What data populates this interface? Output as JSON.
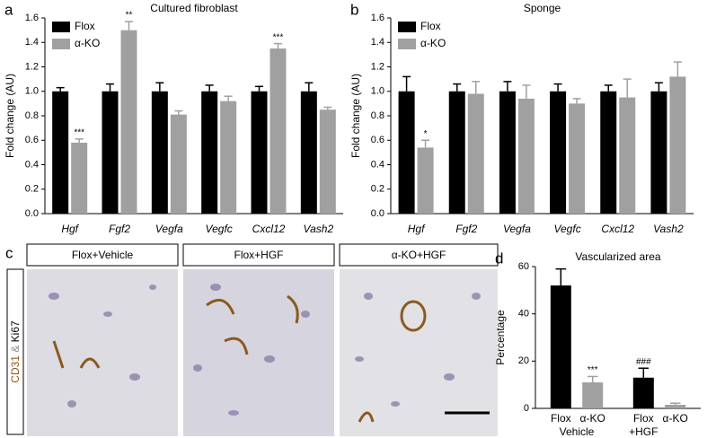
{
  "chart_data": [
    {
      "type": "bar",
      "panel": "a",
      "title": "Cultured fibroblast",
      "ylabel": "Fold change (AU)",
      "categories": [
        "Hgf",
        "Fgf2",
        "Vegfa",
        "Vegfc",
        "Cxcl12",
        "Vash2"
      ],
      "series": [
        {
          "name": "Flox",
          "color": "#000000",
          "values": [
            1,
            1,
            1,
            1,
            1,
            1
          ],
          "errors": [
            0.03,
            0.06,
            0.07,
            0.05,
            0.04,
            0.07
          ],
          "significance": [
            null,
            null,
            null,
            null,
            null,
            null
          ]
        },
        {
          "name": "α-KO",
          "color": "#a0a0a0",
          "values": [
            0.58,
            1.5,
            0.81,
            0.92,
            1.35,
            0.85
          ],
          "errors": [
            0.03,
            0.07,
            0.03,
            0.04,
            0.04,
            0.02
          ],
          "significance": [
            "***",
            "**",
            null,
            null,
            "***",
            null
          ]
        }
      ],
      "ylim": [
        0,
        1.6
      ],
      "yticks": [
        {
          "value": 0,
          "label": "0.0"
        },
        0.2,
        0.4,
        0.6,
        0.8,
        {
          "value": 1,
          "label": "1.0"
        },
        1.2,
        1.4,
        1.6
      ],
      "legend": "top-left"
    },
    {
      "type": "bar",
      "panel": "b",
      "title": "Sponge",
      "ylabel": "Fold change (AU)",
      "categories": [
        "Hgf",
        "Fgf2",
        "Vegfa",
        "Vegfc",
        "Cxcl12",
        "Vash2"
      ],
      "series": [
        {
          "name": "Flox",
          "color": "#000000",
          "values": [
            1,
            1,
            1,
            1,
            1,
            1
          ],
          "errors": [
            0.12,
            0.06,
            0.08,
            0.06,
            0.05,
            0.07
          ],
          "significance": [
            null,
            null,
            null,
            null,
            null,
            null
          ]
        },
        {
          "name": "α-KO",
          "color": "#a0a0a0",
          "values": [
            0.54,
            0.98,
            0.94,
            0.9,
            0.95,
            1.12
          ],
          "errors": [
            0.06,
            0.1,
            0.11,
            0.04,
            0.15,
            0.12
          ],
          "significance": [
            "*",
            null,
            null,
            null,
            null,
            null
          ]
        }
      ],
      "ylim": [
        0,
        1.6
      ],
      "yticks": [
        {
          "value": 0,
          "label": "0.0"
        },
        0.2,
        0.4,
        0.6,
        0.8,
        {
          "value": 1,
          "label": "1.0"
        },
        1.2,
        1.4,
        1.6
      ],
      "legend": "top-left"
    },
    {
      "type": "grouped-bar",
      "panel": "d",
      "title": "Vascularized area",
      "ylabel": "Percentage",
      "categories": [
        "Flox",
        "α-KO",
        "Flox",
        "α-KO"
      ],
      "groups": [
        "Vehicle",
        "+HGF"
      ],
      "values": [
        52,
        11,
        13,
        1.5
      ],
      "errors": [
        7,
        2.5,
        4,
        0.7
      ],
      "colors": [
        "#000000",
        "#a0a0a0",
        "#000000",
        "#a0a0a0"
      ],
      "significance": [
        null,
        "***",
        "###",
        null
      ],
      "ylim": [
        0,
        60
      ],
      "yticks": [
        0,
        20,
        40,
        60
      ]
    }
  ],
  "panel_c": {
    "label": "c",
    "columns": [
      "Flox+Vehicle",
      "Flox+HGF",
      "α-KO+HGF"
    ],
    "stain": [
      "CD31",
      "&",
      "Ki67"
    ]
  }
}
